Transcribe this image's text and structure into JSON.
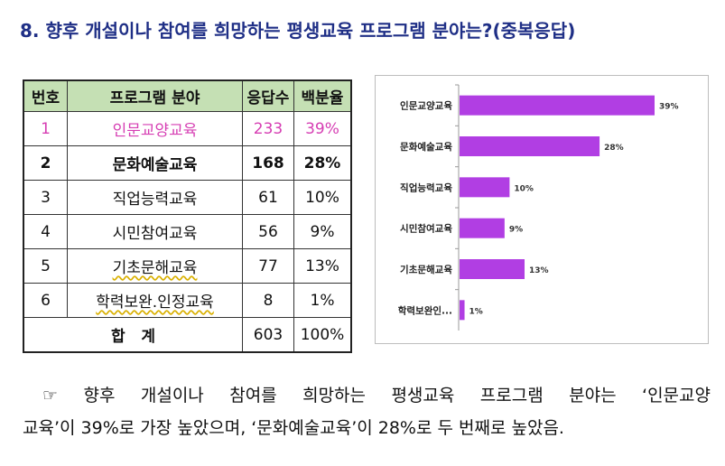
{
  "heading": "8. 향후 개설이나 참여를 희망하는 평생교육 프로그램 분야는?(중복응답)",
  "table": {
    "headers": [
      "번호",
      "프로그램 분야",
      "응답수",
      "백분율"
    ],
    "rows": [
      {
        "no": "1",
        "field": "인문교양교육",
        "count": "233",
        "pct": "39%"
      },
      {
        "no": "2",
        "field": "문화예술교육",
        "count": "168",
        "pct": "28%"
      },
      {
        "no": "3",
        "field": "직업능력교육",
        "count": "61",
        "pct": "10%"
      },
      {
        "no": "4",
        "field": "시민참여교육",
        "count": "56",
        "pct": "9%"
      },
      {
        "no": "5",
        "field": "기초문해교육",
        "count": "77",
        "pct": "13%"
      },
      {
        "no": "6",
        "field": "학력보완.인정교육",
        "count": "8",
        "pct": "1%"
      }
    ],
    "total": {
      "label": "합   계",
      "count": "603",
      "pct": "100%"
    },
    "highlight_color": "#d63eb3",
    "header_bg": "#c5e0b4"
  },
  "chart_data": {
    "type": "bar",
    "orientation": "horizontal",
    "categories": [
      "인문교양교육",
      "문화예술교육",
      "직업능력교육",
      "시민참여교육",
      "기초문해교육",
      "학력보완인..."
    ],
    "values": [
      39,
      28,
      10,
      9,
      13,
      1
    ],
    "value_labels": [
      "39%",
      "28%",
      "10%",
      "9%",
      "13%",
      "1%"
    ],
    "xlim": [
      0,
      45
    ],
    "bar_color": "#b13ee3",
    "grid": false,
    "legend": "none"
  },
  "summary": {
    "line1": "☞ 향후 개설이나 참여를 희망하는 평생교육 프로그램 분야는 ‘인문교양",
    "line2": "교육’이 39%로 가장 높았으며, ‘문화예술교육’이 28%로 두 번째로 높았음."
  }
}
